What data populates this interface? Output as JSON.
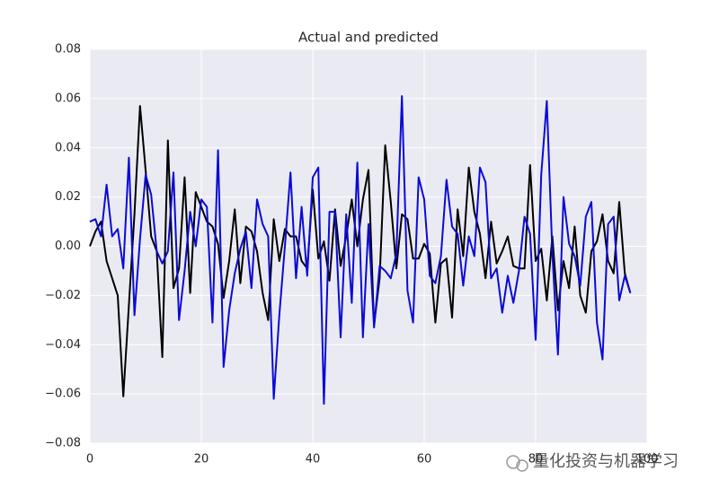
{
  "chart_data": {
    "type": "line",
    "title": "Actual and predicted",
    "x": [
      0,
      1,
      2,
      3,
      4,
      5,
      6,
      7,
      8,
      9,
      10,
      11,
      12,
      13,
      14,
      15,
      16,
      17,
      18,
      19,
      20,
      21,
      22,
      23,
      24,
      25,
      26,
      27,
      28,
      29,
      30,
      31,
      32,
      33,
      34,
      35,
      36,
      37,
      38,
      39,
      40,
      41,
      42,
      43,
      44,
      45,
      46,
      47,
      48,
      49,
      50,
      51,
      52,
      53,
      54,
      55,
      56,
      57,
      58,
      59,
      60,
      61,
      62,
      63,
      64,
      65,
      66,
      67,
      68,
      69,
      70,
      71,
      72,
      73,
      74,
      75,
      76,
      77,
      78,
      79,
      80,
      81,
      82,
      83,
      84,
      85,
      86,
      87,
      88,
      89,
      90,
      91,
      92,
      93,
      94,
      95,
      96,
      97
    ],
    "series": [
      {
        "color": "#000000",
        "values": [
          0.0,
          0.006,
          0.01,
          -0.006,
          -0.013,
          -0.02,
          -0.061,
          -0.024,
          0.013,
          0.057,
          0.031,
          0.004,
          -0.002,
          -0.045,
          0.043,
          -0.017,
          -0.009,
          0.028,
          -0.019,
          0.022,
          0.016,
          0.01,
          0.008,
          0.001,
          -0.021,
          -0.006,
          0.015,
          -0.015,
          0.008,
          0.006,
          -0.002,
          -0.019,
          -0.03,
          0.011,
          -0.006,
          0.007,
          0.004,
          0.004,
          -0.006,
          -0.009,
          0.023,
          -0.005,
          0.002,
          -0.014,
          0.015,
          -0.008,
          0.004,
          0.019,
          0.0,
          0.019,
          0.031,
          -0.032,
          -0.013,
          0.041,
          0.018,
          -0.009,
          0.013,
          0.011,
          -0.005,
          -0.005,
          0.001,
          -0.003,
          -0.031,
          -0.007,
          -0.005,
          -0.029,
          0.015,
          -0.004,
          0.032,
          0.014,
          0.005,
          -0.013,
          0.01,
          -0.007,
          -0.002,
          0.004,
          -0.008,
          -0.009,
          -0.009,
          0.033,
          -0.006,
          -0.001,
          -0.022,
          0.004,
          -0.026,
          -0.006,
          -0.017,
          0.008,
          -0.02,
          -0.027,
          -0.002,
          0.002,
          0.013,
          -0.006,
          -0.011,
          0.018,
          -0.011,
          -0.019
        ]
      },
      {
        "color": "#0a0ad8",
        "values": [
          0.01,
          0.011,
          0.004,
          0.025,
          0.004,
          0.007,
          -0.009,
          0.036,
          -0.028,
          0.003,
          0.029,
          0.021,
          -0.002,
          -0.007,
          -0.002,
          0.03,
          -0.03,
          -0.01,
          0.014,
          0.0,
          0.019,
          0.016,
          -0.031,
          0.039,
          -0.049,
          -0.026,
          -0.011,
          -0.001,
          0.006,
          -0.017,
          0.019,
          0.009,
          0.004,
          -0.062,
          -0.028,
          0.0,
          0.03,
          -0.013,
          0.016,
          -0.012,
          0.028,
          0.032,
          -0.064,
          0.014,
          0.014,
          -0.037,
          0.013,
          -0.023,
          0.034,
          -0.037,
          0.009,
          -0.033,
          -0.008,
          -0.01,
          -0.013,
          -0.003,
          0.061,
          -0.018,
          -0.031,
          0.028,
          0.019,
          -0.012,
          -0.015,
          -0.004,
          0.027,
          0.008,
          0.005,
          -0.016,
          0.004,
          -0.004,
          0.032,
          0.026,
          -0.013,
          -0.009,
          -0.027,
          -0.012,
          -0.023,
          -0.01,
          0.012,
          0.005,
          -0.038,
          0.029,
          0.059,
          -0.003,
          -0.044,
          0.02,
          0.001,
          -0.004,
          -0.016,
          0.012,
          0.018,
          -0.031,
          -0.046,
          0.009,
          0.012,
          -0.022,
          -0.012,
          -0.019
        ]
      }
    ],
    "xlim": [
      0,
      100
    ],
    "xticks": [
      0,
      20,
      40,
      60,
      80,
      100
    ],
    "ylim": [
      -0.08,
      0.08
    ],
    "yticks": [
      {
        "value": -0.08,
        "label": "−0.08"
      },
      {
        "value": -0.06,
        "label": "−0.06"
      },
      {
        "value": -0.04,
        "label": "−0.04"
      },
      {
        "value": -0.02,
        "label": "−0.02"
      },
      {
        "value": 0,
        "label": "0.00"
      },
      {
        "value": 0.02,
        "label": "0.02"
      },
      {
        "value": 0.04,
        "label": "0.04"
      },
      {
        "value": 0.06,
        "label": "0.06"
      },
      {
        "value": 0.08,
        "label": "0.08"
      }
    ],
    "grid": true,
    "background": "#eaeaf2"
  },
  "watermark": "量化投资与机器学习"
}
